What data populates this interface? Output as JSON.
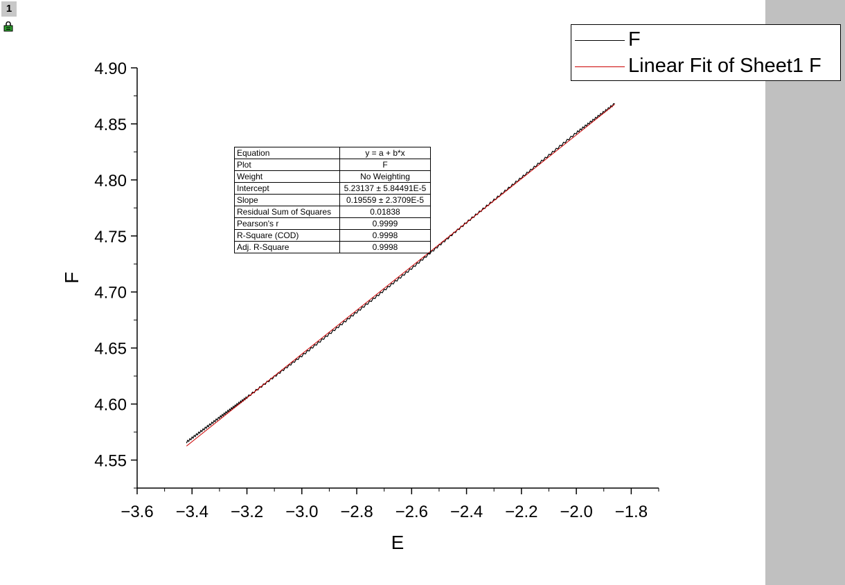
{
  "layer_badge": "1",
  "legend": {
    "items": [
      {
        "label": "F",
        "color": "#000000"
      },
      {
        "label": "Linear Fit of Sheet1 F",
        "color": "#cc0000"
      }
    ]
  },
  "stats_table": [
    {
      "key": "Equation",
      "value": "y = a + b*x"
    },
    {
      "key": "Plot",
      "value": "F"
    },
    {
      "key": "Weight",
      "value": "No Weighting"
    },
    {
      "key": "Intercept",
      "value": "5.23137 ± 5.84491E-5"
    },
    {
      "key": "Slope",
      "value": "0.19559 ± 2.3709E-5"
    },
    {
      "key": "Residual Sum of Squares",
      "value": "0.01838"
    },
    {
      "key": "Pearson's r",
      "value": "0.9999"
    },
    {
      "key": "R-Square (COD)",
      "value": "0.9998"
    },
    {
      "key": "Adj. R-Square",
      "value": "0.9998"
    }
  ],
  "chart_data": {
    "type": "line",
    "title": "",
    "xlabel": "E",
    "ylabel": "F",
    "xlim": [
      -3.6,
      -1.7
    ],
    "ylim": [
      4.525,
      4.9
    ],
    "x_ticks": [
      "−3.6",
      "−3.4",
      "−3.2",
      "−3.0",
      "−2.8",
      "−2.6",
      "−2.4",
      "−2.2",
      "−2.0",
      "−1.8"
    ],
    "y_ticks": [
      "4.55",
      "4.60",
      "4.65",
      "4.70",
      "4.75",
      "4.80",
      "4.85",
      "4.90"
    ],
    "series": [
      {
        "name": "F",
        "color": "#000000",
        "x": [
          -3.42,
          -3.3,
          -3.2,
          -3.0,
          -2.8,
          -2.6,
          -2.4,
          -2.2,
          -2.0,
          -1.86
        ],
        "y": [
          4.566,
          4.588,
          4.606,
          4.643,
          4.682,
          4.721,
          4.762,
          4.802,
          4.842,
          4.868
        ]
      },
      {
        "name": "Linear Fit of Sheet1 F",
        "color": "#cc0000",
        "x": [
          -3.42,
          -1.86
        ],
        "y": [
          4.5625,
          4.8675
        ]
      }
    ],
    "legend_position": "top-right",
    "grid": false
  }
}
